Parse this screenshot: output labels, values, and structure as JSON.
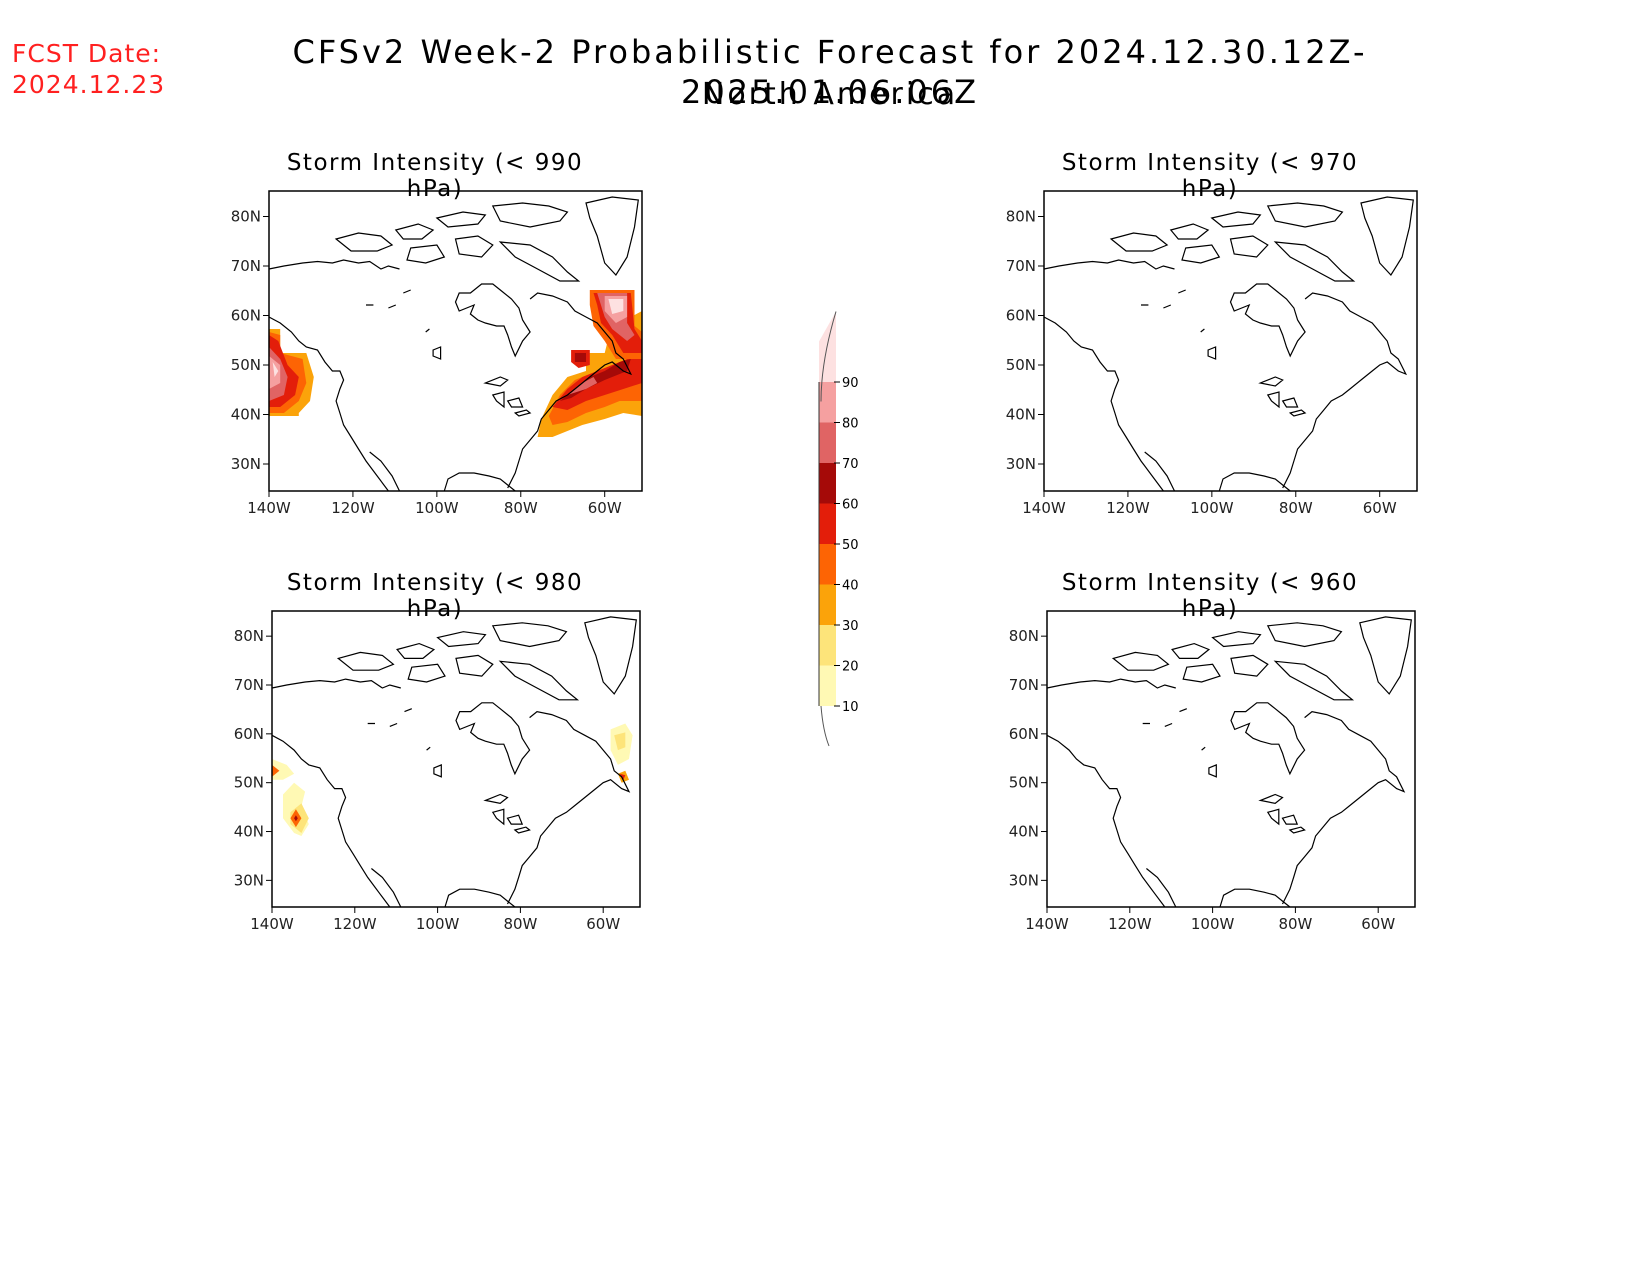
{
  "header": {
    "fcst_label": "FCST Date:",
    "fcst_date": "2024.12.23",
    "title": "CFSv2 Week-2 Probabilistic Forecast for 2024.12.30.12Z-2025.01.06.06Z",
    "subtitle": "North America"
  },
  "axes": {
    "lon_ticks": [
      "140W",
      "120W",
      "100W",
      "80W",
      "60W"
    ],
    "lat_ticks": [
      "80N",
      "70N",
      "60N",
      "50N",
      "40N",
      "30N"
    ]
  },
  "panels": [
    {
      "id": "p990",
      "title": "Storm Intensity (< 990 hPa)",
      "has_data": true
    },
    {
      "id": "p970",
      "title": "Storm Intensity (< 970 hPa)",
      "has_data": false
    },
    {
      "id": "p980",
      "title": "Storm Intensity (< 980 hPa)",
      "has_data": true
    },
    {
      "id": "p960",
      "title": "Storm Intensity (< 960 hPa)",
      "has_data": false
    }
  ],
  "colorbar": {
    "levels": [
      "10",
      "20",
      "30",
      "40",
      "50",
      "60",
      "70",
      "80",
      "90"
    ],
    "colors": [
      "#fff9b4",
      "#fde47a",
      "#fba30a",
      "#fd6404",
      "#e31e0a",
      "#a50a08",
      "#e06464",
      "#f5a0a0",
      "#fde1e1"
    ]
  },
  "map_style": {
    "coast_color": "#000000",
    "frame_color": "#000000"
  }
}
